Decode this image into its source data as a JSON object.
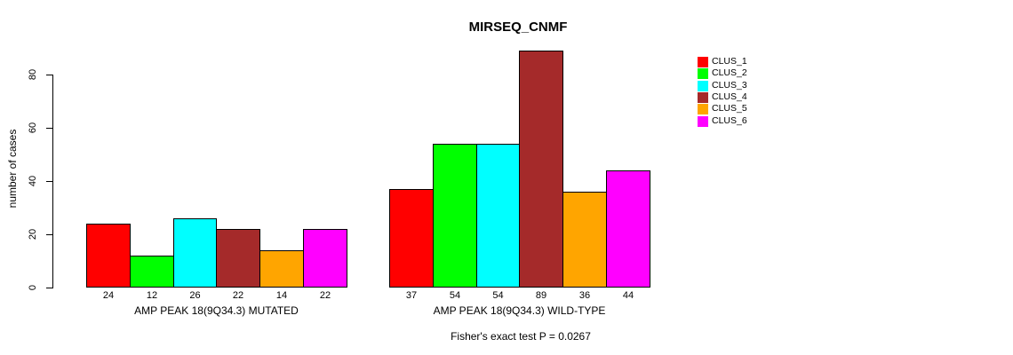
{
  "chart_data": {
    "type": "bar",
    "title": "MIRSEQ_CNMF",
    "ylabel": "number of cases",
    "xlabel": "",
    "y_ticks": [
      0,
      20,
      40,
      60,
      80
    ],
    "ylim": [
      0,
      89
    ],
    "grid": false,
    "legend_position": "right-outside",
    "series": [
      {
        "name": "CLUS_1",
        "color": "#FF0000"
      },
      {
        "name": "CLUS_2",
        "color": "#00FF00"
      },
      {
        "name": "CLUS_3",
        "color": "#00FFFF"
      },
      {
        "name": "CLUS_4",
        "color": "#A52A2A"
      },
      {
        "name": "CLUS_5",
        "color": "#FFA500"
      },
      {
        "name": "CLUS_6",
        "color": "#FF00FF"
      }
    ],
    "groups": [
      {
        "label": "AMP PEAK 18(9Q34.3) MUTATED",
        "values": [
          24,
          12,
          26,
          22,
          14,
          22
        ]
      },
      {
        "label": "AMP PEAK 18(9Q34.3) WILD-TYPE",
        "values": [
          37,
          54,
          54,
          89,
          36,
          44
        ]
      }
    ],
    "annotation": "Fisher's exact test P = 0.0267"
  }
}
